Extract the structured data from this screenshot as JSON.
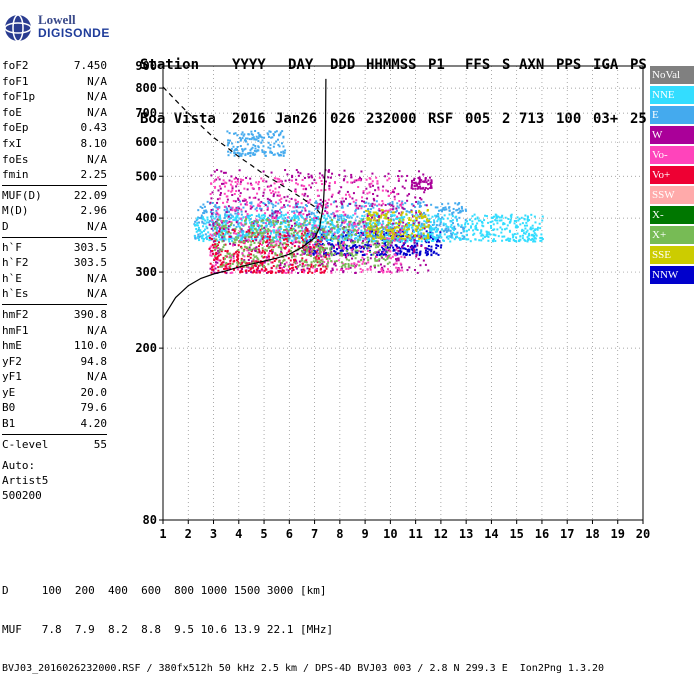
{
  "logo": {
    "line1": "Lowell",
    "line2": "DIGISONDE"
  },
  "header": {
    "columns": [
      "Station",
      "YYYY",
      "DAY",
      "DDD",
      "HHMMSS",
      "P1",
      "FFS",
      "S",
      "AXN",
      "PPS",
      "IGA",
      "PS"
    ],
    "values": [
      "Boa Vista",
      "2016",
      "Jan26",
      "026",
      "232000",
      "RSF",
      "005",
      "2",
      "713",
      "100",
      "03+",
      "25"
    ]
  },
  "params": {
    "group1": [
      {
        "label": "foF2",
        "value": "7.450"
      },
      {
        "label": "foF1",
        "value": "N/A"
      },
      {
        "label": "foF1p",
        "value": "N/A"
      },
      {
        "label": "foE",
        "value": "N/A"
      },
      {
        "label": "foEp",
        "value": "0.43"
      },
      {
        "label": "fxI",
        "value": "8.10"
      },
      {
        "label": "foEs",
        "value": "N/A"
      },
      {
        "label": "fmin",
        "value": "2.25"
      }
    ],
    "group2": [
      {
        "label": "MUF(D)",
        "value": "22.09"
      },
      {
        "label": "M(D)",
        "value": "2.96"
      },
      {
        "label": "D",
        "value": "N/A"
      }
    ],
    "group3": [
      {
        "label": "h`F",
        "value": "303.5"
      },
      {
        "label": "h`F2",
        "value": "303.5"
      },
      {
        "label": "h`E",
        "value": "N/A"
      },
      {
        "label": "h`Es",
        "value": "N/A"
      }
    ],
    "group4": [
      {
        "label": "hmF2",
        "value": "390.8"
      },
      {
        "label": "hmF1",
        "value": "N/A"
      },
      {
        "label": "hmE",
        "value": "110.0"
      },
      {
        "label": "yF2",
        "value": "94.8"
      },
      {
        "label": "yF1",
        "value": "N/A"
      },
      {
        "label": "yE",
        "value": "20.0"
      },
      {
        "label": "B0",
        "value": "79.6"
      },
      {
        "label": "B1",
        "value": "4.20"
      }
    ],
    "group5": [
      {
        "label": "C-level",
        "value": "55"
      }
    ],
    "auto": [
      "Auto:",
      "Artist5",
      "500200"
    ]
  },
  "legend": [
    {
      "label": "NoVal",
      "color": "#808080"
    },
    {
      "label": "NNE",
      "color": "#33ddff"
    },
    {
      "label": "E",
      "color": "#44aaee"
    },
    {
      "label": "W",
      "color": "#aa0099"
    },
    {
      "label": "Vo-",
      "color": "#ff44bb"
    },
    {
      "label": "Vo+",
      "color": "#ee0033"
    },
    {
      "label": "SSW",
      "color": "#ffaaaa"
    },
    {
      "label": "X-",
      "color": "#007700"
    },
    {
      "label": "X+",
      "color": "#77bb55"
    },
    {
      "label": "SSE",
      "color": "#cccc00"
    },
    {
      "label": "NNW",
      "color": "#0000cc"
    }
  ],
  "footer": {
    "line1": "D     100  200  400  600  800 1000 1500 3000 [km]",
    "line2": "MUF   7.8  7.9  8.2  8.8  9.5 10.6 13.9 22.1 [MHz]",
    "line3": "BVJ03_2016026232000.RSF / 380fx512h 50 kHz 2.5 km / DPS-4D BVJ03 003 / 2.8 N 299.3 E  Ion2Png 1.3.20"
  },
  "chart_data": {
    "type": "scatter",
    "title": "",
    "xlabel": "",
    "ylabel": "",
    "xlim": [
      1,
      20
    ],
    "ylim_log": [
      80,
      900
    ],
    "xticks": [
      1,
      2,
      3,
      4,
      5,
      6,
      7,
      8,
      9,
      10,
      11,
      12,
      13,
      14,
      15,
      16,
      17,
      18,
      19,
      20
    ],
    "yticks": [
      80,
      200,
      300,
      400,
      500,
      600,
      700,
      800,
      900
    ],
    "y_scale": "log",
    "grid": "dotted",
    "trace_lines": {
      "solid_profile": [
        [
          1.0,
          235
        ],
        [
          1.5,
          262
        ],
        [
          2.0,
          279
        ],
        [
          2.5,
          290
        ],
        [
          3.0,
          297
        ],
        [
          3.5,
          302
        ],
        [
          4.0,
          308
        ],
        [
          4.5,
          313
        ],
        [
          5.0,
          318
        ],
        [
          5.5,
          323
        ],
        [
          6.0,
          330
        ],
        [
          6.5,
          342
        ],
        [
          7.0,
          360
        ],
        [
          7.2,
          380
        ],
        [
          7.35,
          430
        ],
        [
          7.42,
          520
        ],
        [
          7.45,
          840
        ]
      ],
      "dashed_boundary": [
        [
          1.0,
          805
        ],
        [
          1.5,
          750
        ],
        [
          2.0,
          700
        ],
        [
          2.5,
          655
        ],
        [
          3.0,
          615
        ],
        [
          3.5,
          585
        ],
        [
          4.0,
          555
        ],
        [
          4.5,
          530
        ],
        [
          5.0,
          505
        ],
        [
          5.5,
          485
        ],
        [
          6.0,
          465
        ],
        [
          6.5,
          445
        ],
        [
          7.0,
          425
        ],
        [
          7.3,
          405
        ]
      ]
    },
    "echo_regions": [
      {
        "name": "NNW",
        "color": "#0000cc",
        "x": [
          6.5,
          12.0
        ],
        "y": [
          330,
          375
        ]
      },
      {
        "name": "E",
        "color": "#44aaee",
        "x": [
          2.2,
          13.0
        ],
        "y": [
          360,
          440
        ]
      },
      {
        "name": "NNE",
        "color": "#33ddff",
        "x": [
          2.2,
          16.0
        ],
        "y": [
          355,
          410
        ]
      },
      {
        "name": "W",
        "color": "#aa0099",
        "x": [
          2.8,
          11.5
        ],
        "y": [
          300,
          520
        ]
      },
      {
        "name": "Vo-",
        "color": "#ff44bb",
        "x": [
          2.8,
          10.5
        ],
        "y": [
          300,
          500
        ]
      },
      {
        "name": "Vo+",
        "color": "#ee0033",
        "x": [
          2.8,
          7.5
        ],
        "y": [
          300,
          380
        ]
      },
      {
        "name": "X+",
        "color": "#77bb55",
        "x": [
          3.0,
          10.0
        ],
        "y": [
          310,
          400
        ]
      },
      {
        "name": "SSE",
        "color": "#cccc00",
        "x": [
          9.0,
          11.5
        ],
        "y": [
          360,
          420
        ]
      },
      {
        "name": "W-upper",
        "color": "#aa0099",
        "x": [
          10.8,
          11.6
        ],
        "y": [
          470,
          500
        ]
      },
      {
        "name": "E-upper",
        "color": "#44aaee",
        "x": [
          3.5,
          5.8
        ],
        "y": [
          560,
          640
        ]
      }
    ]
  }
}
